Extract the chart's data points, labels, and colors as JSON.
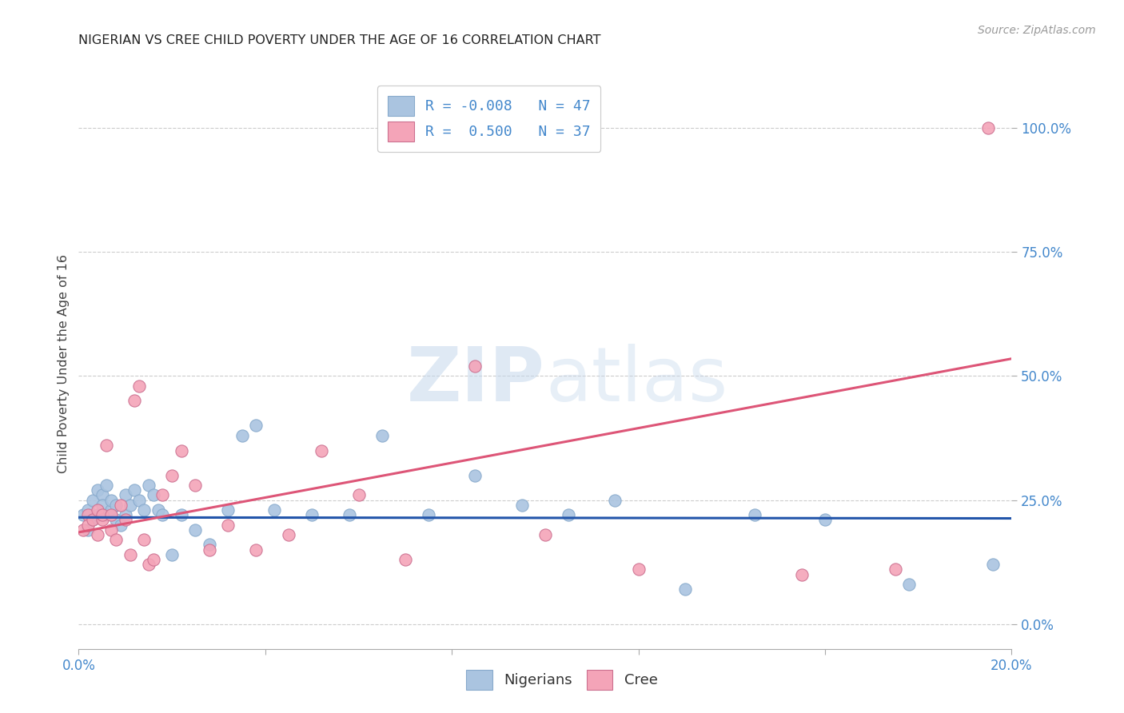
{
  "title": "NIGERIAN VS CREE CHILD POVERTY UNDER THE AGE OF 16 CORRELATION CHART",
  "source": "Source: ZipAtlas.com",
  "ylabel": "Child Poverty Under the Age of 16",
  "xlim": [
    0.0,
    0.2
  ],
  "ylim": [
    -0.05,
    1.1
  ],
  "yticks": [
    0.0,
    0.25,
    0.5,
    0.75,
    1.0
  ],
  "ytick_labels": [
    "0.0%",
    "25.0%",
    "50.0%",
    "75.0%",
    "100.0%"
  ],
  "xticks": [
    0.0,
    0.04,
    0.08,
    0.12,
    0.16,
    0.2
  ],
  "xtick_labels": [
    "0.0%",
    "",
    "",
    "",
    "",
    "20.0%"
  ],
  "background_color": "#ffffff",
  "grid_color": "#cccccc",
  "nigerians_color": "#aac4e0",
  "cree_color": "#f4a4b8",
  "nigerian_line_color": "#2255aa",
  "cree_line_color": "#dd5577",
  "legend_nigerian_label": "R = -0.008   N = 47",
  "legend_cree_label": "R =  0.500   N = 37",
  "nigerians_x": [
    0.001,
    0.002,
    0.002,
    0.003,
    0.003,
    0.004,
    0.004,
    0.005,
    0.005,
    0.006,
    0.006,
    0.007,
    0.007,
    0.008,
    0.008,
    0.009,
    0.01,
    0.01,
    0.011,
    0.012,
    0.013,
    0.014,
    0.015,
    0.016,
    0.017,
    0.018,
    0.02,
    0.022,
    0.025,
    0.028,
    0.032,
    0.035,
    0.038,
    0.042,
    0.05,
    0.058,
    0.065,
    0.075,
    0.085,
    0.095,
    0.105,
    0.115,
    0.13,
    0.145,
    0.16,
    0.178,
    0.196
  ],
  "nigerians_y": [
    0.22,
    0.23,
    0.19,
    0.25,
    0.21,
    0.27,
    0.22,
    0.26,
    0.24,
    0.28,
    0.22,
    0.23,
    0.25,
    0.21,
    0.24,
    0.2,
    0.26,
    0.22,
    0.24,
    0.27,
    0.25,
    0.23,
    0.28,
    0.26,
    0.23,
    0.22,
    0.14,
    0.22,
    0.19,
    0.16,
    0.23,
    0.38,
    0.4,
    0.23,
    0.22,
    0.22,
    0.38,
    0.22,
    0.3,
    0.24,
    0.22,
    0.25,
    0.07,
    0.22,
    0.21,
    0.08,
    0.12
  ],
  "cree_x": [
    0.001,
    0.002,
    0.002,
    0.003,
    0.004,
    0.004,
    0.005,
    0.005,
    0.006,
    0.007,
    0.007,
    0.008,
    0.009,
    0.01,
    0.011,
    0.012,
    0.013,
    0.014,
    0.015,
    0.016,
    0.018,
    0.02,
    0.022,
    0.025,
    0.028,
    0.032,
    0.038,
    0.045,
    0.052,
    0.06,
    0.07,
    0.085,
    0.1,
    0.12,
    0.155,
    0.175,
    0.195
  ],
  "cree_y": [
    0.19,
    0.22,
    0.2,
    0.21,
    0.23,
    0.18,
    0.21,
    0.22,
    0.36,
    0.19,
    0.22,
    0.17,
    0.24,
    0.21,
    0.14,
    0.45,
    0.48,
    0.17,
    0.12,
    0.13,
    0.26,
    0.3,
    0.35,
    0.28,
    0.15,
    0.2,
    0.15,
    0.18,
    0.35,
    0.26,
    0.13,
    0.52,
    0.18,
    0.11,
    0.1,
    0.11,
    1.0
  ],
  "nigerian_trend_x": [
    0.0,
    0.2
  ],
  "nigerian_trend_y": [
    0.215,
    0.213
  ],
  "cree_trend_x": [
    0.0,
    0.2
  ],
  "cree_trend_y": [
    0.185,
    0.535
  ]
}
